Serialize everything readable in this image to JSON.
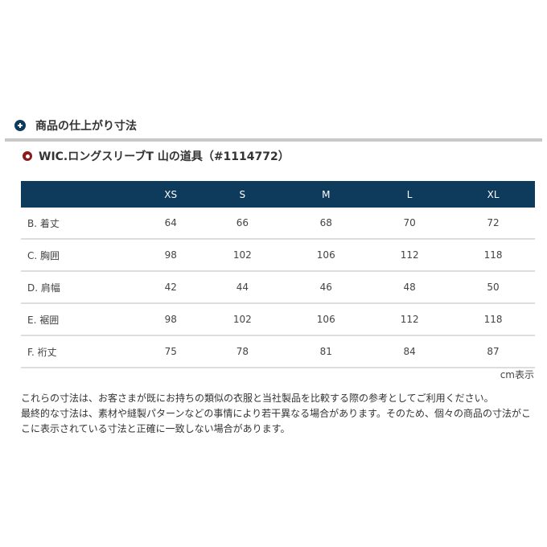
{
  "section_title": "商品の仕上がり寸法",
  "product_title": "WIC.ロングスリーブT 山の道具（#1114772）",
  "table": {
    "headers": [
      "",
      "XS",
      "S",
      "M",
      "L",
      "XL"
    ],
    "rows": [
      {
        "label": "B. 着丈",
        "values": [
          "64",
          "66",
          "68",
          "70",
          "72"
        ]
      },
      {
        "label": "C. 胸囲",
        "values": [
          "98",
          "102",
          "106",
          "112",
          "118"
        ]
      },
      {
        "label": "D. 肩幅",
        "values": [
          "42",
          "44",
          "46",
          "48",
          "50"
        ]
      },
      {
        "label": "E. 裾囲",
        "values": [
          "98",
          "102",
          "106",
          "112",
          "118"
        ]
      },
      {
        "label": "F. 裄丈",
        "values": [
          "75",
          "78",
          "81",
          "84",
          "87"
        ]
      }
    ]
  },
  "unit_note": "cm表示",
  "notes": [
    "これらの寸法は、お客さまが既にお持ちの類似の衣服と当社製品を比較する際の参考としてご利用ください。",
    "最終的な寸法は、素材や縫製パターンなどの事情により若干異なる場合があります。そのため、個々の商品の寸法がここに表示されている寸法と正確に一致しない場合があります。"
  ],
  "colors": {
    "header_bg": "#0e3a5c",
    "product_icon": "#8b1a1a"
  }
}
